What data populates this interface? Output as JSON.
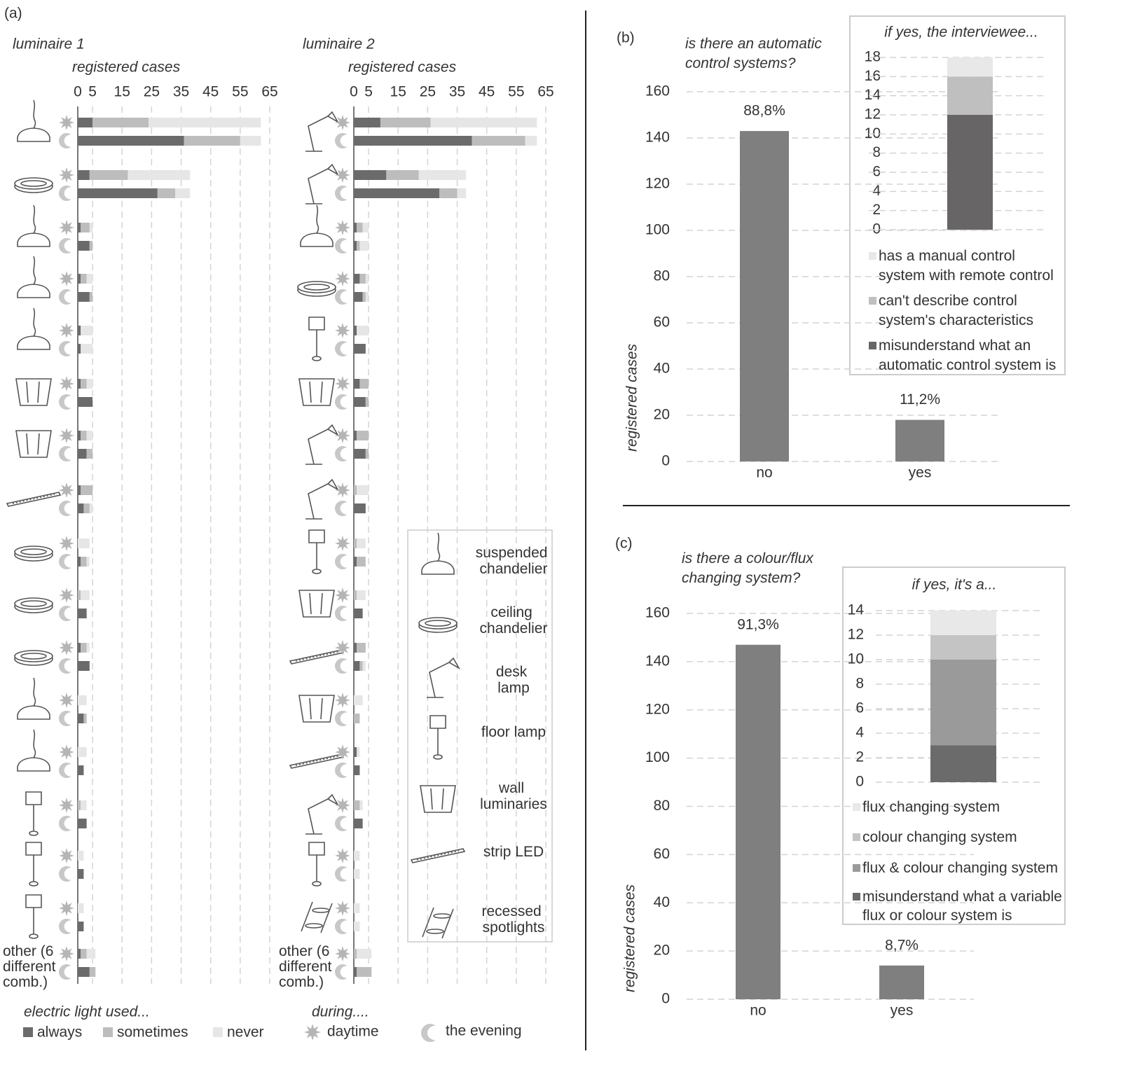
{
  "chart_data": [
    {
      "type": "paired_stacked_barh",
      "label": "(a)",
      "series": [
        {
          "name": "always",
          "color": "#6b6b6b"
        },
        {
          "name": "sometimes",
          "color": "#bdbdbd"
        },
        {
          "name": "never",
          "color": "#e6e6e6"
        }
      ],
      "legend_title": "electric light used...",
      "groups": [
        "daytime",
        "the evening"
      ],
      "group_title": "during....",
      "luminaire_types": [
        "suspended chandelier",
        "ceiling chandelier",
        "desk lamp",
        "floor lamp",
        "wall luminaries",
        "strip LED",
        "recessed spotlights"
      ],
      "panels": [
        {
          "title": "luminaire 1",
          "xlabel": "registered cases",
          "xlim": [
            0,
            65
          ],
          "xticks": [
            0,
            5,
            15,
            25,
            35,
            45,
            55,
            65
          ],
          "categories": [
            null,
            null,
            null,
            null,
            null,
            null,
            null,
            null,
            null,
            null,
            null,
            null,
            null,
            null,
            null,
            null,
            "other (6 different comb.)"
          ],
          "values": [
            [
              [
                5,
                19,
                38
              ],
              [
                36,
                19,
                7
              ]
            ],
            [
              [
                4,
                13,
                21
              ],
              [
                27,
                6,
                5
              ]
            ],
            [
              [
                1,
                3,
                1
              ],
              [
                4,
                1,
                0
              ]
            ],
            [
              [
                1,
                2,
                2
              ],
              [
                4,
                1,
                0
              ]
            ],
            [
              [
                1,
                0,
                4
              ],
              [
                1,
                0,
                4
              ]
            ],
            [
              [
                1,
                2,
                2
              ],
              [
                5,
                0,
                0
              ]
            ],
            [
              [
                1,
                2,
                2
              ],
              [
                3,
                2,
                0
              ]
            ],
            [
              [
                1,
                4,
                0
              ],
              [
                2,
                2,
                1
              ]
            ],
            [
              [
                0,
                0,
                4
              ],
              [
                1,
                2,
                1
              ]
            ],
            [
              [
                0,
                1,
                3
              ],
              [
                3,
                0,
                0
              ]
            ],
            [
              [
                1,
                2,
                1
              ],
              [
                4,
                0,
                0
              ]
            ],
            [
              [
                0,
                0,
                3
              ],
              [
                2,
                1,
                0
              ]
            ],
            [
              [
                0,
                0,
                3
              ],
              [
                2,
                0,
                0
              ]
            ],
            [
              [
                0,
                1,
                2
              ],
              [
                3,
                0,
                0
              ]
            ],
            [
              [
                0,
                0,
                2
              ],
              [
                2,
                0,
                0
              ]
            ],
            [
              [
                0,
                0,
                2
              ],
              [
                2,
                0,
                0
              ]
            ],
            [
              [
                1,
                2,
                3
              ],
              [
                4,
                2,
                0
              ]
            ]
          ]
        },
        {
          "title": "luminaire 2",
          "xlabel": "registered cases",
          "xlim": [
            0,
            65
          ],
          "xticks": [
            0,
            5,
            15,
            25,
            35,
            45,
            55,
            65
          ],
          "categories": [
            null,
            null,
            null,
            null,
            null,
            null,
            null,
            null,
            null,
            null,
            null,
            null,
            null,
            null,
            null,
            null,
            "other (6 different comb.)"
          ],
          "values": [
            [
              [
                9,
                17,
                36
              ],
              [
                40,
                18,
                4
              ]
            ],
            [
              [
                11,
                11,
                16
              ],
              [
                29,
                6,
                3
              ]
            ],
            [
              [
                1,
                2,
                2
              ],
              [
                1,
                1,
                3
              ]
            ],
            [
              [
                2,
                2,
                1
              ],
              [
                3,
                1,
                1
              ]
            ],
            [
              [
                1,
                0,
                4
              ],
              [
                4,
                0,
                0
              ]
            ],
            [
              [
                2,
                3,
                0
              ],
              [
                4,
                1,
                0
              ]
            ],
            [
              [
                1,
                4,
                0
              ],
              [
                4,
                1,
                0
              ]
            ],
            [
              [
                0,
                1,
                4
              ],
              [
                4,
                0,
                0
              ]
            ],
            [
              [
                0,
                1,
                3
              ],
              [
                1,
                3,
                0
              ]
            ],
            [
              [
                0,
                1,
                3
              ],
              [
                3,
                0,
                0
              ]
            ],
            [
              [
                1,
                3,
                0
              ],
              [
                2,
                1,
                1
              ]
            ],
            [
              [
                0,
                0,
                3
              ],
              [
                0,
                2,
                0
              ]
            ],
            [
              [
                1,
                0,
                1
              ],
              [
                2,
                0,
                0
              ]
            ],
            [
              [
                0,
                2,
                1
              ],
              [
                3,
                0,
                0
              ]
            ],
            [
              [
                0,
                0,
                2
              ],
              [
                0,
                0,
                2
              ]
            ],
            [
              [
                0,
                0,
                2
              ],
              [
                0,
                0,
                2
              ]
            ],
            [
              [
                0,
                1,
                5
              ],
              [
                1,
                5,
                0
              ]
            ]
          ]
        }
      ]
    },
    {
      "type": "bar",
      "label": "(b)",
      "title": "is there an automatic control systems?",
      "ylabel": "registered cases",
      "categories": [
        "no",
        "yes"
      ],
      "values": [
        143,
        18
      ],
      "annotations": [
        "88,8%",
        "11,2%"
      ],
      "color": "#7f7f7f",
      "ylim": [
        0,
        160
      ],
      "yticks": [
        0,
        20,
        40,
        60,
        80,
        100,
        120,
        140,
        160
      ],
      "grid": true
    },
    {
      "type": "stacked_bar",
      "title": "if yes, the interviewee...",
      "series": [
        {
          "name": "misunderstand what an automatic control system is",
          "color": "#676565",
          "values": [
            12
          ]
        },
        {
          "name": "can't describe control system's characteristics",
          "color": "#bfbfbf",
          "values": [
            4
          ]
        },
        {
          "name": "has a manual control system with remote control",
          "color": "#e8e8e8",
          "values": [
            2
          ]
        }
      ],
      "ylim": [
        0,
        18
      ],
      "yticks": [
        0,
        2,
        4,
        6,
        8,
        10,
        12,
        14,
        16,
        18
      ],
      "grid": true
    },
    {
      "type": "bar",
      "label": "(c)",
      "title": "is there a colour/flux changing system?",
      "ylabel": "registered cases",
      "categories": [
        "no",
        "yes"
      ],
      "values": [
        147,
        14
      ],
      "annotations": [
        "91,3%",
        "8,7%"
      ],
      "color": "#7f7f7f",
      "ylim": [
        0,
        160
      ],
      "yticks": [
        0,
        20,
        40,
        60,
        80,
        100,
        120,
        140,
        160
      ],
      "grid": true
    },
    {
      "type": "stacked_bar",
      "title": "if yes, it's a...",
      "series": [
        {
          "name": "misunderstand what a variable flux or colour system is",
          "color": "#6b6b6b",
          "values": [
            3
          ]
        },
        {
          "name": "flux & colour changing system",
          "color": "#9a9a9a",
          "values": [
            7
          ]
        },
        {
          "name": "colour changing system",
          "color": "#c4c4c4",
          "values": [
            2
          ]
        },
        {
          "name": "flux changing system",
          "color": "#e8e8e8",
          "values": [
            2
          ]
        }
      ],
      "ylim": [
        0,
        14
      ],
      "yticks": [
        0,
        2,
        4,
        6,
        8,
        10,
        12,
        14
      ],
      "grid": true
    }
  ]
}
